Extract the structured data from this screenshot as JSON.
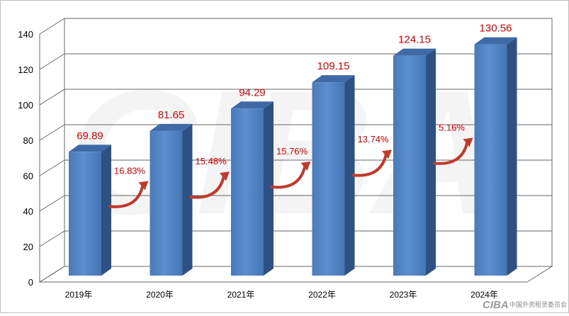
{
  "chart_data": {
    "type": "bar",
    "categories": [
      "2019年",
      "2020年",
      "2021年",
      "2022年",
      "2023年",
      "2024年"
    ],
    "values": [
      69.89,
      81.65,
      94.29,
      109.15,
      124.15,
      130.56
    ],
    "value_labels": [
      "69.89",
      "81.65",
      "94.29",
      "109.15",
      "124.15",
      "130.56"
    ],
    "growth_labels": [
      "16.83%",
      "15.48%",
      "15.76%",
      "13.74%",
      "5.16%"
    ],
    "ylim": [
      0,
      140
    ],
    "yticks": [
      "0",
      "20",
      "40",
      "60",
      "80",
      "100",
      "120",
      "140"
    ],
    "title": "",
    "xlabel": "",
    "ylabel": "",
    "grid": true,
    "legend": "none",
    "bar_color": "#4f81bd",
    "label_color": "#e00000",
    "arrow_color": "#c0392b"
  },
  "watermark": {
    "logo_text": "CIBA",
    "org_name": "中国外资租赁委员会"
  }
}
